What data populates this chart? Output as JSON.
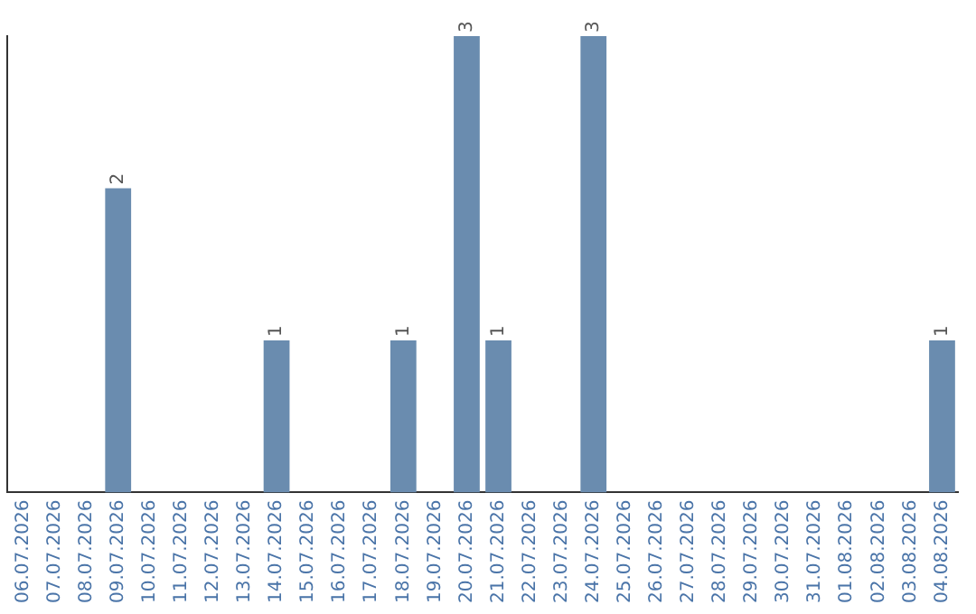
{
  "chart_data": {
    "type": "bar",
    "categories": [
      "06.07.2026",
      "07.07.2026",
      "08.07.2026",
      "09.07.2026",
      "10.07.2026",
      "11.07.2026",
      "12.07.2026",
      "13.07.2026",
      "14.07.2026",
      "15.07.2026",
      "16.07.2026",
      "17.07.2026",
      "18.07.2026",
      "19.07.2026",
      "20.07.2026",
      "21.07.2026",
      "22.07.2026",
      "23.07.2026",
      "24.07.2026",
      "25.07.2026",
      "26.07.2026",
      "27.07.2026",
      "28.07.2026",
      "29.07.2026",
      "30.07.2026",
      "31.07.2026",
      "01.08.2026",
      "02.08.2026",
      "03.08.2026",
      "04.08.2026"
    ],
    "values": [
      0,
      0,
      0,
      2,
      0,
      0,
      0,
      0,
      1,
      0,
      0,
      0,
      1,
      0,
      3,
      1,
      0,
      0,
      3,
      0,
      0,
      0,
      0,
      0,
      0,
      0,
      0,
      0,
      0,
      1
    ],
    "value_labels": [
      null,
      null,
      null,
      "2",
      null,
      null,
      null,
      null,
      "1",
      null,
      null,
      null,
      "1",
      null,
      "3",
      "1",
      null,
      null,
      "3",
      null,
      null,
      null,
      null,
      null,
      null,
      null,
      null,
      null,
      null,
      "1"
    ],
    "color": "#6a8caf",
    "ylim": [
      0,
      3
    ],
    "tick_labels": "x",
    "grid": false,
    "legend": false
  }
}
